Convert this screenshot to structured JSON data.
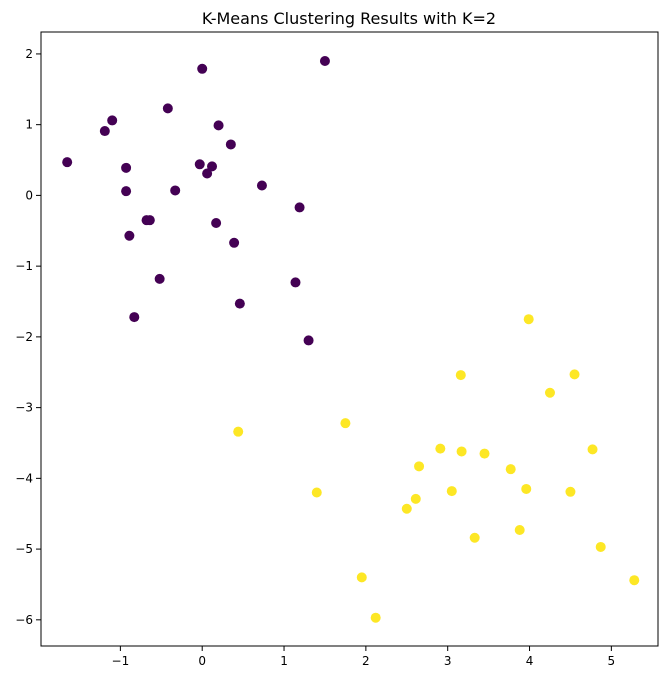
{
  "chart_data": {
    "type": "scatter",
    "title": "K-Means Clustering Results with K=2",
    "xlabel": "",
    "ylabel": "",
    "xlim": [
      -1.97,
      5.57
    ],
    "ylim": [
      -6.37,
      2.31
    ],
    "xticks": [
      -1,
      0,
      1,
      2,
      3,
      4,
      5
    ],
    "yticks": [
      2,
      1,
      0,
      -1,
      -2,
      -3,
      -4,
      -5,
      -6
    ],
    "tick_labels": {
      "x": [
        "−1",
        "0",
        "1",
        "2",
        "3",
        "4",
        "5"
      ],
      "y": [
        "2",
        "1",
        "0",
        "−1",
        "−2",
        "−3",
        "−4",
        "−5",
        "−6"
      ]
    },
    "grid": false,
    "legend": "none",
    "series": [
      {
        "color": "#440154",
        "points": [
          [
            -1.65,
            0.47
          ],
          [
            -1.19,
            0.91
          ],
          [
            -1.1,
            1.06
          ],
          [
            -0.93,
            0.39
          ],
          [
            -0.93,
            0.06
          ],
          [
            -0.89,
            -0.57
          ],
          [
            -0.83,
            -1.72
          ],
          [
            -0.68,
            -0.35
          ],
          [
            -0.64,
            -0.35
          ],
          [
            -0.52,
            -1.18
          ],
          [
            -0.42,
            1.23
          ],
          [
            -0.33,
            0.07
          ],
          [
            -0.03,
            0.44
          ],
          [
            0.0,
            1.79
          ],
          [
            0.06,
            0.31
          ],
          [
            0.12,
            0.41
          ],
          [
            0.17,
            -0.39
          ],
          [
            0.2,
            0.99
          ],
          [
            0.35,
            0.72
          ],
          [
            0.39,
            -0.67
          ],
          [
            0.46,
            -1.53
          ],
          [
            0.73,
            0.14
          ],
          [
            1.14,
            -1.23
          ],
          [
            1.19,
            -0.17
          ],
          [
            1.3,
            -2.05
          ],
          [
            1.5,
            1.9
          ]
        ]
      },
      {
        "color": "#fde725",
        "points": [
          [
            0.44,
            -3.34
          ],
          [
            1.4,
            -4.2
          ],
          [
            1.75,
            -3.22
          ],
          [
            1.95,
            -5.4
          ],
          [
            2.12,
            -5.97
          ],
          [
            2.5,
            -4.43
          ],
          [
            2.61,
            -4.29
          ],
          [
            2.65,
            -3.83
          ],
          [
            2.91,
            -3.58
          ],
          [
            3.05,
            -4.18
          ],
          [
            3.16,
            -2.54
          ],
          [
            3.17,
            -3.62
          ],
          [
            3.33,
            -4.84
          ],
          [
            3.45,
            -3.65
          ],
          [
            3.77,
            -3.87
          ],
          [
            3.88,
            -4.73
          ],
          [
            3.96,
            -4.15
          ],
          [
            3.99,
            -1.75
          ],
          [
            4.25,
            -2.79
          ],
          [
            4.5,
            -4.19
          ],
          [
            4.55,
            -2.53
          ],
          [
            4.77,
            -3.59
          ],
          [
            4.87,
            -4.97
          ],
          [
            5.28,
            -5.44
          ]
        ]
      }
    ]
  }
}
